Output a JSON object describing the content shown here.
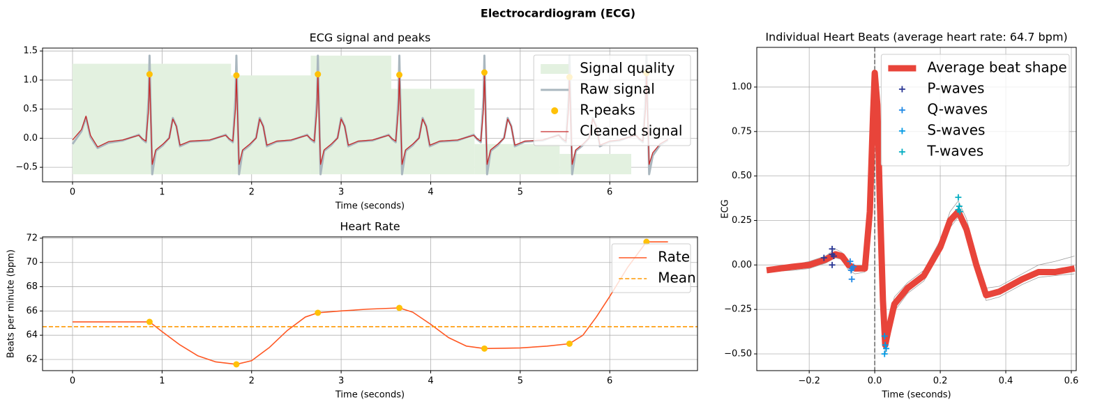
{
  "title": "Electrocardiogram (ECG)",
  "chart_data": [
    {
      "type": "line",
      "title": "ECG signal and peaks",
      "xlabel": "Time (seconds)",
      "xlim": [
        -0.335,
        6.98
      ],
      "ylim": [
        -0.75,
        1.55
      ],
      "xticks": [
        0,
        1,
        2,
        3,
        4,
        5,
        6
      ],
      "yticks": [
        {
          "value": -0.5,
          "label": "−0.5"
        },
        {
          "value": 0,
          "label": "0.0"
        },
        {
          "value": 0.5,
          "label": "0.5"
        },
        {
          "value": 1,
          "label": "1.0"
        },
        {
          "value": 1.5,
          "label": "1.5"
        }
      ],
      "grid": true,
      "legend": "upper right",
      "quality": {
        "name": "Signal quality",
        "color": "#e3f1e0",
        "edges": [
          0,
          1.77,
          2.66,
          3.56,
          4.49,
          5.44,
          6.24
        ],
        "values": [
          1.28,
          1.08,
          1.42,
          0.85,
          -0.1,
          -0.27
        ],
        "baseline": -0.62
      },
      "series": [
        {
          "name": "Raw signal",
          "color": "#aab7bf",
          "linewidth": 3,
          "x": [
            0,
            0.1,
            0.15,
            0.2,
            0.28,
            0.4,
            0.56,
            0.74,
            0.78,
            0.82,
            0.85,
            0.86,
            0.875,
            0.89,
            0.93,
            1.01,
            1.08,
            1.12,
            1.16,
            1.2,
            1.31,
            1.53,
            1.71,
            1.75,
            1.79,
            1.82,
            1.83,
            1.845,
            1.86,
            1.9,
            1.98,
            2.05,
            2.09,
            2.13,
            2.17,
            2.28,
            2.44,
            2.62,
            2.66,
            2.7,
            2.73,
            2.74,
            2.755,
            2.77,
            2.81,
            2.89,
            2.96,
            3,
            3.04,
            3.08,
            3.19,
            3.35,
            3.53,
            3.57,
            3.61,
            3.64,
            3.65,
            3.665,
            3.68,
            3.72,
            3.8,
            3.87,
            3.91,
            3.95,
            3.99,
            4.1,
            4.3,
            4.48,
            4.52,
            4.56,
            4.59,
            4.6,
            4.615,
            4.63,
            4.67,
            4.75,
            4.82,
            4.86,
            4.9,
            4.94,
            5.05,
            5.25,
            5.43,
            5.47,
            5.51,
            5.54,
            5.55,
            5.565,
            5.58,
            5.62,
            5.7,
            5.77,
            5.81,
            5.85,
            5.89,
            6,
            6.11,
            6.29,
            6.33,
            6.37,
            6.4,
            6.41,
            6.425,
            6.44,
            6.48,
            6.56,
            6.65
          ],
          "values": [
            -0.1,
            0.12,
            0.36,
            0.02,
            -0.17,
            -0.08,
            -0.04,
            0.06,
            -0.02,
            -0.07,
            0.7,
            1.42,
            0.4,
            -0.62,
            -0.22,
            -0.12,
            0.01,
            0.35,
            0.21,
            -0.14,
            -0.06,
            -0.04,
            0.06,
            -0.02,
            -0.07,
            0.7,
            1.42,
            0.4,
            -0.62,
            -0.22,
            -0.12,
            0.01,
            0.35,
            0.21,
            -0.14,
            -0.06,
            -0.04,
            0.06,
            -0.02,
            -0.07,
            0.7,
            1.42,
            0.4,
            -0.62,
            -0.22,
            -0.12,
            0.01,
            0.35,
            0.21,
            -0.14,
            -0.06,
            -0.04,
            0.06,
            -0.02,
            -0.07,
            0.7,
            1.42,
            0.4,
            -0.62,
            -0.22,
            -0.12,
            0.01,
            0.35,
            0.21,
            -0.14,
            -0.06,
            -0.04,
            0.06,
            -0.02,
            -0.07,
            0.7,
            1.42,
            0.4,
            -0.62,
            -0.22,
            -0.12,
            0.01,
            0.35,
            0.21,
            -0.14,
            -0.06,
            -0.04,
            0.06,
            -0.02,
            -0.07,
            0.7,
            1.42,
            0.4,
            -0.62,
            -0.22,
            -0.12,
            0.01,
            0.35,
            0.21,
            -0.14,
            -0.06,
            -0.04,
            0.06,
            -0.02,
            -0.07,
            0.7,
            1.42,
            0.4,
            -0.62,
            -0.3,
            -0.12,
            -0.03
          ]
        },
        {
          "name": "R-peaks",
          "color": "#ffc107",
          "marker": "o",
          "x": [
            0.86,
            1.83,
            2.74,
            3.65,
            4.6,
            5.55,
            6.41
          ],
          "values": [
            1.1,
            1.08,
            1.1,
            1.09,
            1.13,
            1.05,
            1.12
          ]
        },
        {
          "name": "Cleaned signal",
          "color": "#c62828",
          "linewidth": 1.3,
          "x": [
            0,
            0.1,
            0.15,
            0.2,
            0.28,
            0.4,
            0.56,
            0.74,
            0.78,
            0.82,
            0.85,
            0.86,
            0.875,
            0.89,
            0.93,
            1.01,
            1.08,
            1.12,
            1.16,
            1.2,
            1.31,
            1.53,
            1.71,
            1.75,
            1.79,
            1.82,
            1.83,
            1.845,
            1.86,
            1.9,
            1.98,
            2.05,
            2.09,
            2.13,
            2.17,
            2.28,
            2.44,
            2.62,
            2.66,
            2.7,
            2.73,
            2.74,
            2.755,
            2.77,
            2.81,
            2.89,
            2.96,
            3,
            3.04,
            3.08,
            3.19,
            3.35,
            3.53,
            3.57,
            3.61,
            3.64,
            3.65,
            3.665,
            3.68,
            3.72,
            3.8,
            3.87,
            3.91,
            3.95,
            3.99,
            4.1,
            4.3,
            4.48,
            4.52,
            4.56,
            4.59,
            4.6,
            4.615,
            4.63,
            4.67,
            4.75,
            4.82,
            4.86,
            4.9,
            4.94,
            5.05,
            5.25,
            5.43,
            5.47,
            5.51,
            5.54,
            5.55,
            5.565,
            5.58,
            5.62,
            5.7,
            5.77,
            5.81,
            5.85,
            5.89,
            6,
            6.11,
            6.29,
            6.33,
            6.37,
            6.4,
            6.41,
            6.425,
            6.44,
            6.48,
            6.56,
            6.65
          ],
          "values": [
            -0.03,
            0.15,
            0.38,
            0.05,
            -0.15,
            -0.06,
            -0.03,
            0.05,
            -0.01,
            -0.05,
            0.5,
            1.1,
            0.3,
            -0.45,
            -0.2,
            -0.1,
            0,
            0.33,
            0.2,
            -0.12,
            -0.05,
            -0.03,
            0.05,
            -0.01,
            -0.05,
            0.5,
            1.08,
            0.3,
            -0.45,
            -0.2,
            -0.1,
            0,
            0.33,
            0.2,
            -0.12,
            -0.05,
            -0.03,
            0.05,
            -0.01,
            -0.05,
            0.5,
            1.1,
            0.3,
            -0.45,
            -0.2,
            -0.1,
            0,
            0.33,
            0.2,
            -0.12,
            -0.05,
            -0.03,
            0.05,
            -0.01,
            -0.05,
            0.5,
            1.09,
            0.3,
            -0.45,
            -0.2,
            -0.1,
            0,
            0.33,
            0.2,
            -0.12,
            -0.05,
            -0.03,
            0.05,
            -0.01,
            -0.05,
            0.5,
            1.13,
            0.3,
            -0.45,
            -0.2,
            -0.1,
            0,
            0.33,
            0.2,
            -0.12,
            -0.05,
            -0.03,
            0.05,
            -0.01,
            -0.05,
            0.5,
            1.05,
            0.3,
            -0.45,
            -0.2,
            -0.1,
            0,
            0.33,
            0.2,
            -0.12,
            -0.05,
            -0.03,
            0.05,
            -0.01,
            -0.05,
            0.5,
            1.12,
            0.3,
            -0.45,
            -0.25,
            -0.1,
            -0.02
          ]
        }
      ]
    },
    {
      "type": "line",
      "title": "Heart Rate",
      "xlabel": "Time (seconds)",
      "ylabel": "Beats per minute (bpm)",
      "xlim": [
        -0.335,
        6.98
      ],
      "ylim": [
        61.08,
        72.11
      ],
      "xticks": [
        0,
        1,
        2,
        3,
        4,
        5,
        6
      ],
      "yticks": [
        62,
        64,
        66,
        68,
        70,
        72
      ],
      "grid": true,
      "legend": "upper right",
      "series": [
        {
          "name": "Rate",
          "color": "#ff5722",
          "linewidth": 1.6,
          "x": [
            0,
            0.86,
            1,
            1.2,
            1.4,
            1.6,
            1.83,
            2,
            2.2,
            2.4,
            2.6,
            2.74,
            3,
            3.3,
            3.65,
            3.8,
            4,
            4.2,
            4.4,
            4.6,
            5,
            5.3,
            5.55,
            5.7,
            5.85,
            6,
            6.2,
            6.41,
            6.65
          ],
          "values": [
            65.1,
            65.1,
            64.3,
            63.2,
            62.3,
            61.8,
            61.6,
            61.9,
            63,
            64.4,
            65.5,
            65.85,
            66,
            66.15,
            66.25,
            65.9,
            64.9,
            63.8,
            63.1,
            62.9,
            62.95,
            63.1,
            63.3,
            64,
            65.5,
            67.2,
            69.6,
            71.7,
            71.7
          ]
        },
        {
          "name": "Mean",
          "color": "#ff9800",
          "linestyle": "dashed",
          "hline": 64.7
        }
      ],
      "peaks": {
        "color": "#ffc107",
        "x": [
          0.86,
          1.83,
          2.74,
          3.65,
          4.6,
          5.55,
          6.41
        ],
        "values": [
          65.1,
          61.6,
          65.85,
          66.25,
          62.9,
          63.3,
          71.7
        ]
      }
    },
    {
      "type": "line",
      "title": "Individual Heart Beats (average heart rate: 64.7 bpm)",
      "xlabel": "Time (seconds)",
      "ylabel": "ECG",
      "xlim": [
        -0.36,
        0.615
      ],
      "ylim": [
        -0.594,
        1.223
      ],
      "xticks": [
        {
          "value": -0.2,
          "label": "−0.2"
        },
        {
          "value": 0,
          "label": "0.0"
        },
        {
          "value": 0.2,
          "label": "0.2"
        },
        {
          "value": 0.4,
          "label": "0.4"
        },
        {
          "value": 0.6,
          "label": "0.6"
        }
      ],
      "yticks": [
        {
          "value": -0.5,
          "label": "−0.50"
        },
        {
          "value": -0.25,
          "label": "−0.25"
        },
        {
          "value": 0,
          "label": "0.00"
        },
        {
          "value": 0.25,
          "label": "0.25"
        },
        {
          "value": 0.5,
          "label": "0.50"
        },
        {
          "value": 0.75,
          "label": "0.75"
        },
        {
          "value": 1,
          "label": "1.00"
        }
      ],
      "grid": true,
      "legend": "upper right",
      "vline": 0,
      "beats": {
        "color": "#9e9e9e",
        "x": [
          -0.33,
          -0.25,
          -0.2,
          -0.15,
          -0.12,
          -0.1,
          -0.08,
          -0.06,
          -0.03,
          -0.015,
          -0.005,
          0,
          0.008,
          0.015,
          0.025,
          0.032,
          0.04,
          0.06,
          0.1,
          0.15,
          0.2,
          0.23,
          0.255,
          0.28,
          0.31,
          0.34,
          0.38,
          0.45,
          0.5,
          0.55,
          0.61
        ],
        "values": [
          [
            -0.02,
            0,
            0.02,
            0.05,
            0.09,
            0.07,
            0.02,
            -0.01,
            -0.01,
            0.35,
            0.9,
            1.1,
            0.92,
            0.42,
            -0.15,
            -0.4,
            -0.33,
            -0.18,
            -0.1,
            -0.03,
            0.14,
            0.3,
            0.36,
            0.26,
            0.05,
            -0.13,
            -0.12,
            -0.05,
            0,
            0.02,
            0.05
          ],
          [
            -0.04,
            -0.03,
            -0.02,
            0.01,
            0.04,
            0.03,
            -0.03,
            -0.05,
            -0.04,
            0.25,
            0.8,
            1.06,
            0.88,
            0.37,
            -0.25,
            -0.5,
            -0.42,
            -0.26,
            -0.16,
            -0.09,
            0.07,
            0.21,
            0.27,
            0.16,
            -0.03,
            -0.2,
            -0.18,
            -0.11,
            -0.07,
            -0.06,
            -0.05
          ]
        ]
      },
      "series": [
        {
          "name": "Average beat shape",
          "color": "#e8443a",
          "linewidth": 9,
          "x": [
            -0.33,
            -0.25,
            -0.2,
            -0.15,
            -0.12,
            -0.1,
            -0.08,
            -0.06,
            -0.03,
            -0.015,
            -0.005,
            0,
            0.008,
            0.015,
            0.025,
            0.032,
            0.04,
            0.06,
            0.1,
            0.15,
            0.2,
            0.23,
            0.255,
            0.28,
            0.31,
            0.34,
            0.38,
            0.45,
            0.5,
            0.55,
            0.61
          ],
          "values": [
            -0.03,
            -0.01,
            0,
            0.03,
            0.06,
            0.05,
            0,
            -0.02,
            -0.02,
            0.3,
            0.85,
            1.08,
            0.9,
            0.4,
            -0.2,
            -0.45,
            -0.38,
            -0.22,
            -0.13,
            -0.06,
            0.1,
            0.25,
            0.3,
            0.2,
            0,
            -0.17,
            -0.15,
            -0.08,
            -0.04,
            -0.04,
            -0.02
          ]
        },
        {
          "name": "P-waves",
          "color": "#283593",
          "marker": "+",
          "x": [
            -0.155,
            -0.13,
            -0.13,
            -0.125,
            -0.13
          ],
          "values": [
            0.04,
            0.09,
            0.06,
            0.05,
            0
          ]
        },
        {
          "name": "Q-waves",
          "color": "#1e88e5",
          "marker": "+",
          "x": [
            -0.075,
            -0.07,
            -0.065,
            -0.07,
            -0.072
          ],
          "values": [
            0.02,
            -0.02,
            -0.01,
            -0.08,
            -0.03
          ]
        },
        {
          "name": "S-waves",
          "color": "#039be5",
          "marker": "+",
          "x": [
            0.03,
            0.032,
            0.03,
            0.035
          ],
          "values": [
            -0.5,
            -0.45,
            -0.4,
            -0.47
          ]
        },
        {
          "name": "T-waves",
          "color": "#00acc1",
          "marker": "+",
          "x": [
            0.255,
            0.258,
            0.255,
            0.26
          ],
          "values": [
            0.38,
            0.33,
            0.31,
            0.3
          ]
        }
      ]
    }
  ]
}
